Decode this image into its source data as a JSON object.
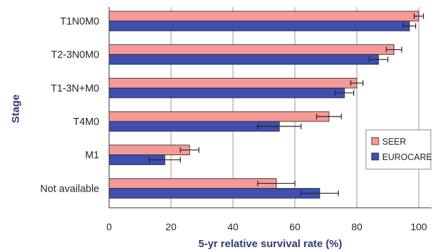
{
  "chart_data": {
    "type": "bar",
    "orientation": "horizontal",
    "categories": [
      "T1N0M0",
      "T2-3N0M0",
      "T1-3N+M0",
      "T4M0",
      "M1",
      "Not available"
    ],
    "series": [
      {
        "name": "SEER",
        "color": "#f59a96",
        "values": [
          100,
          92,
          80,
          71,
          26,
          54
        ],
        "error": [
          1.5,
          2.5,
          2,
          4,
          3,
          6
        ]
      },
      {
        "name": "EUROCARE",
        "color": "#3e4fb0",
        "values": [
          97,
          87,
          76,
          55,
          18,
          68
        ],
        "error": [
          2,
          3,
          3,
          7,
          5,
          6
        ]
      }
    ],
    "xlabel": "5-yr relative survival rate (%)",
    "ylabel": "Stage",
    "xlim": [
      0,
      110
    ],
    "xticks": [
      "0",
      "20",
      "40",
      "60",
      "80",
      "100"
    ],
    "grid": "vertical",
    "legend_position": "right"
  }
}
